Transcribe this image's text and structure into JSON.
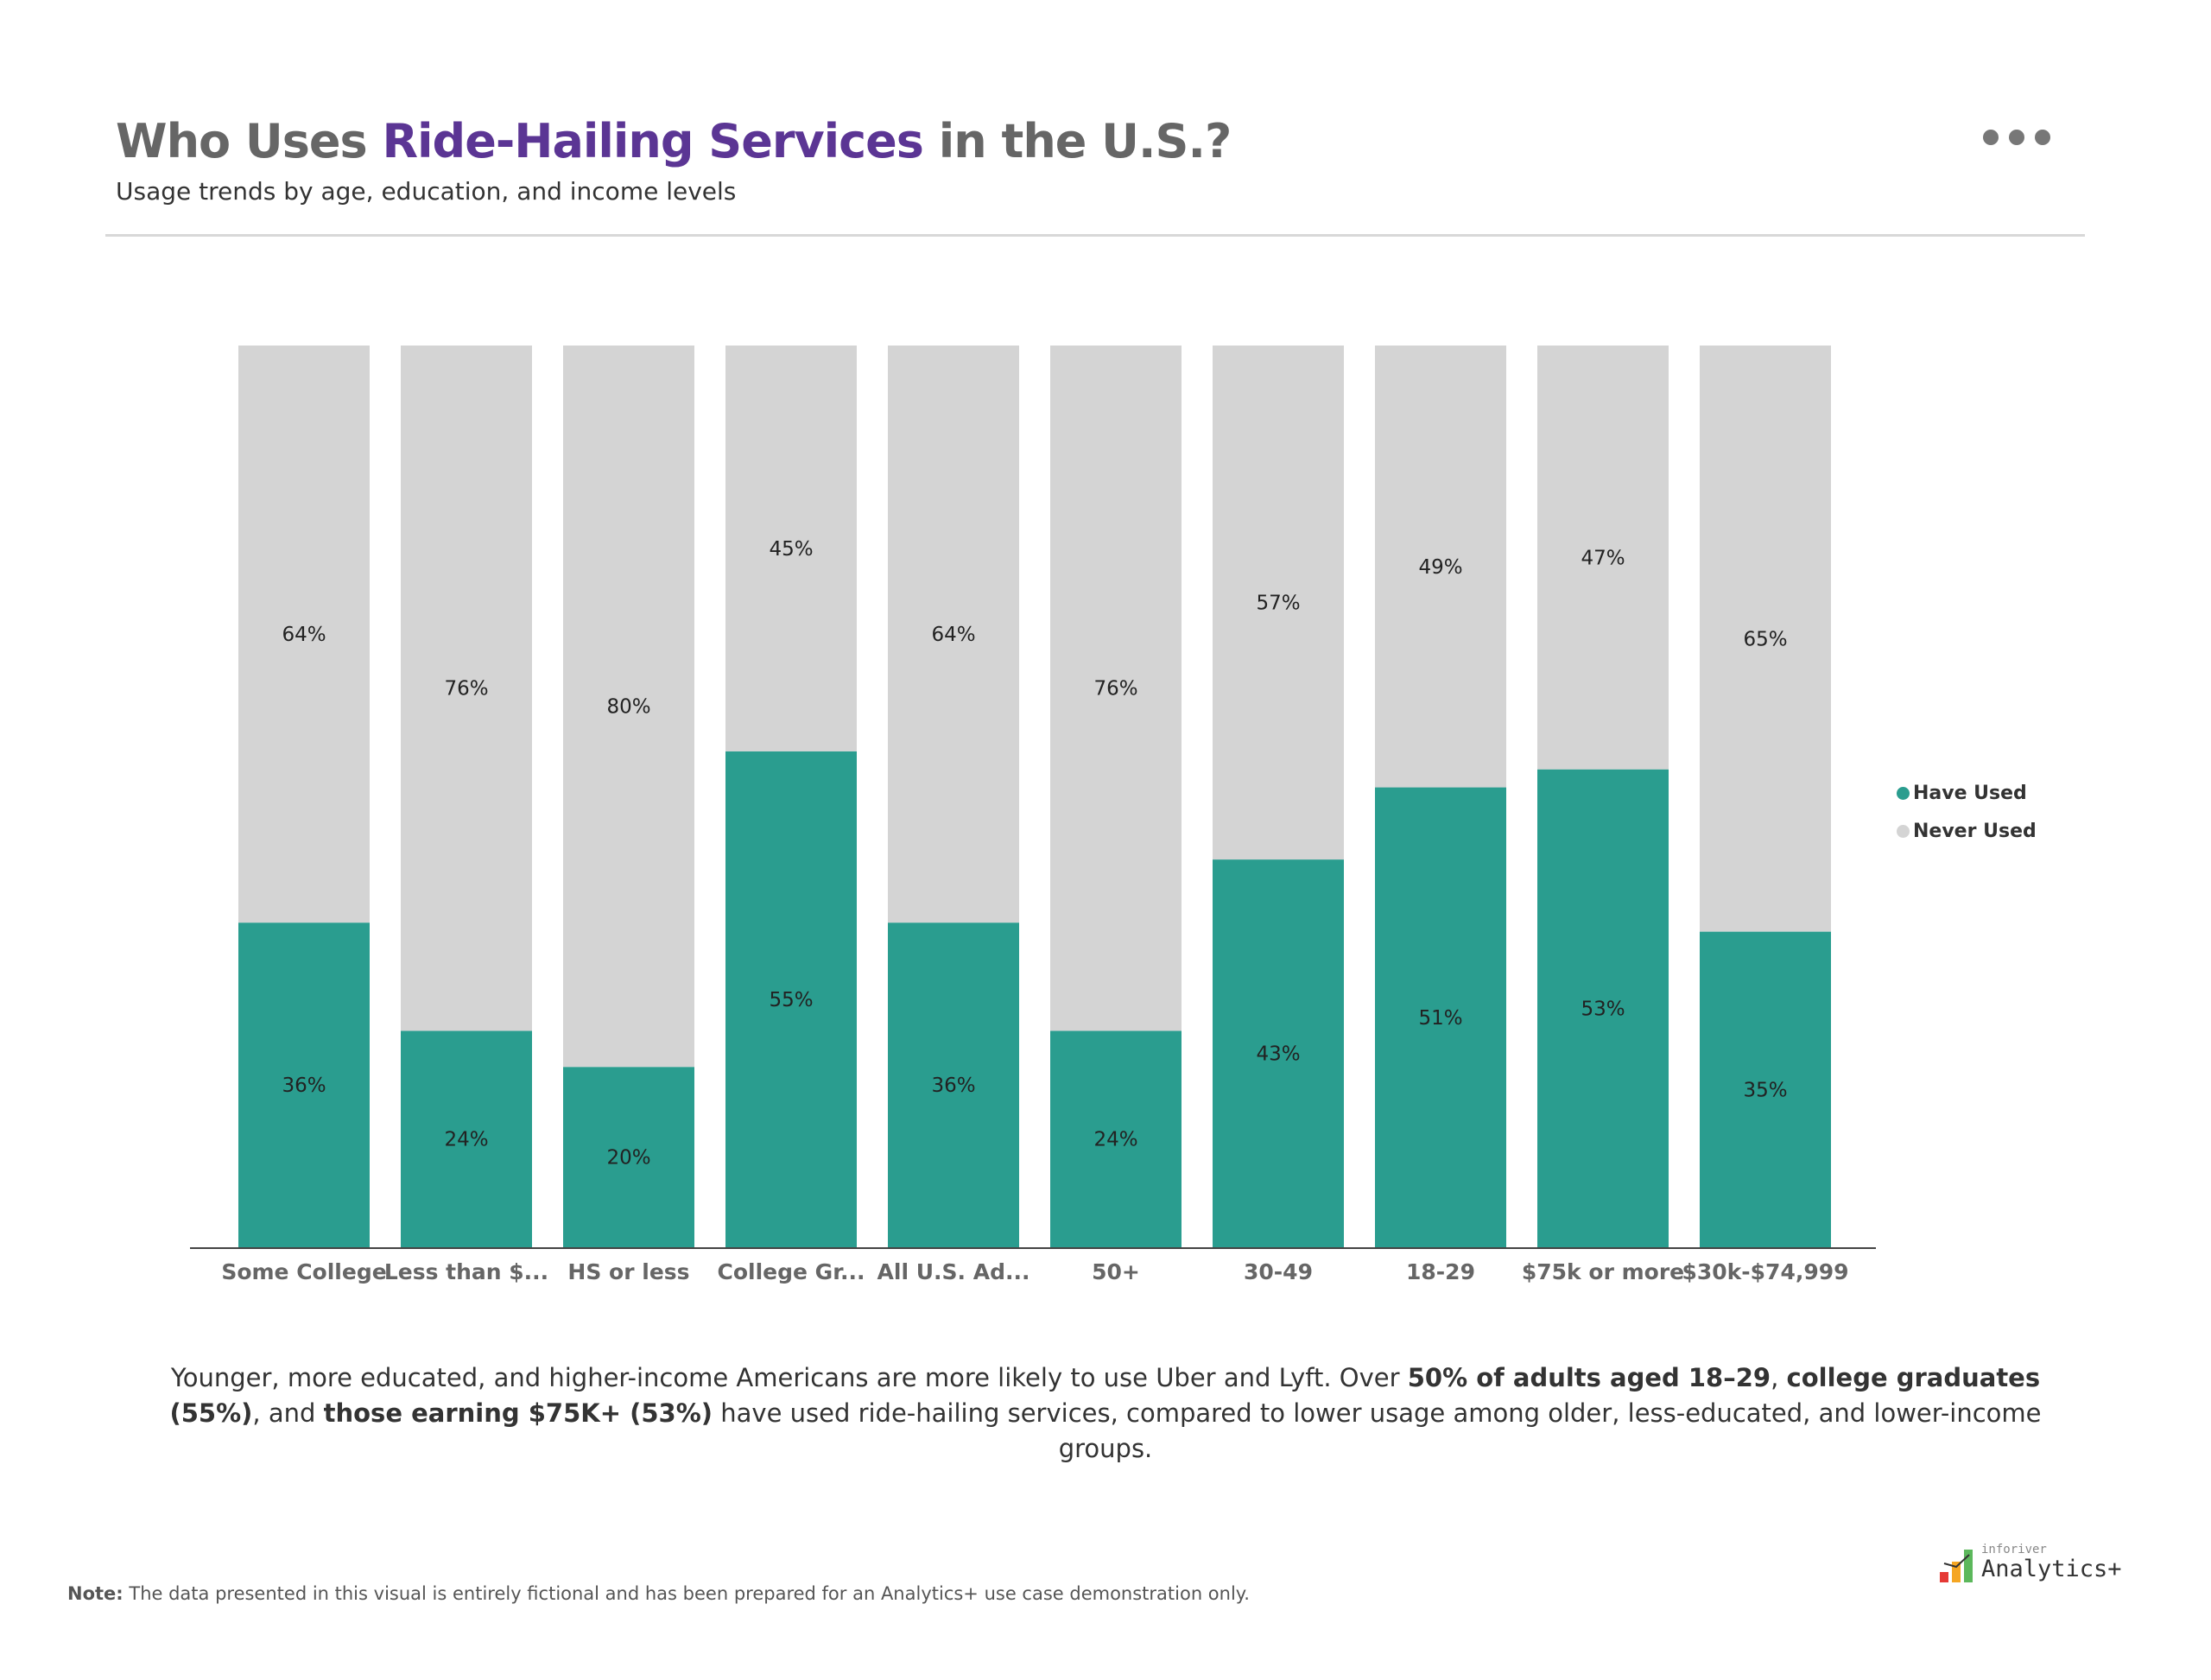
{
  "header": {
    "title_pre": "Who Uses ",
    "title_highlight": "Ride-Hailing Services",
    "title_post": " in the U.S.?",
    "subtitle": "Usage trends by age, education, and income levels",
    "more_icon": "ellipsis-icon"
  },
  "colors": {
    "have_used": "#2a9d8f",
    "never_used": "#d4d4d4",
    "title_highlight": "#5b3594"
  },
  "chart_data": {
    "type": "bar",
    "stacked": true,
    "percent_stacked": true,
    "categories": [
      "Some College",
      "Less than $...",
      "HS or less",
      "College Gr...",
      "All U.S. Ad...",
      "50+",
      "30-49",
      "18-29",
      "$75k or more",
      "$30k-$74,999"
    ],
    "series": [
      {
        "name": "Have Used",
        "color": "#2a9d8f",
        "values": [
          36,
          24,
          20,
          55,
          36,
          24,
          43,
          51,
          53,
          35
        ]
      },
      {
        "name": "Never Used",
        "color": "#d4d4d4",
        "values": [
          64,
          76,
          80,
          45,
          64,
          76,
          57,
          49,
          47,
          65
        ]
      }
    ],
    "ylim": [
      0,
      100
    ],
    "legend": "right",
    "grid": false,
    "data_labels": true
  },
  "summary": {
    "t1": "Younger, more educated, and higher-income Americans are more likely to use Uber and Lyft. Over ",
    "b1": "50% of adults aged 18–29",
    "t2": ", ",
    "b2": "college graduates (55%)",
    "t3": ", and ",
    "b3": "those earning $75K+ (53%)",
    "t4": " have used ride-hailing services, compared to lower usage among older, less-educated, and lower-income groups."
  },
  "note": {
    "label": "Note:",
    "text": " The data presented in this visual is entirely fictional and has been prepared for an Analytics+ use case demonstration only."
  },
  "logo": {
    "brand": "inforiver",
    "product": "Analytics+"
  }
}
